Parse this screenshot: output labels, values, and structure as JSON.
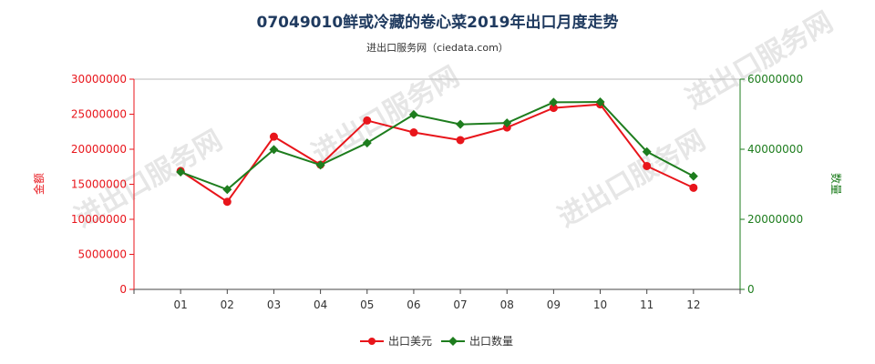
{
  "chart_data": {
    "type": "line",
    "title": "07049010鲜或冷藏的卷心菜2019年出口月度走势",
    "subtitle": "进出口服务网（ciedata.com）",
    "categories": [
      "01",
      "02",
      "03",
      "04",
      "05",
      "06",
      "07",
      "08",
      "09",
      "10",
      "11",
      "12"
    ],
    "series": [
      {
        "name": "出口美元",
        "axis": "left",
        "color": "#e8151b",
        "values": [
          16900000,
          12500000,
          21800000,
          17800000,
          24100000,
          22400000,
          21300000,
          23100000,
          25900000,
          26400000,
          17600000,
          14500000
        ]
      },
      {
        "name": "出口数量",
        "axis": "right",
        "color": "#1e7d1e",
        "values": [
          33500000,
          28500000,
          39900000,
          35500000,
          41800000,
          49900000,
          47100000,
          47500000,
          53400000,
          53500000,
          39300000,
          32300000
        ]
      }
    ],
    "ylabel_left": "金额",
    "ylabel_right": "数量",
    "ylim_left": [
      0,
      30000000
    ],
    "ylim_right": [
      0,
      60000000
    ],
    "yticks_left": [
      0,
      5000000,
      10000000,
      15000000,
      20000000,
      25000000,
      30000000
    ],
    "yticks_right": [
      0,
      20000000,
      40000000,
      60000000
    ],
    "legend_position": "bottom",
    "grid": false,
    "watermark": "进出口服务网"
  }
}
